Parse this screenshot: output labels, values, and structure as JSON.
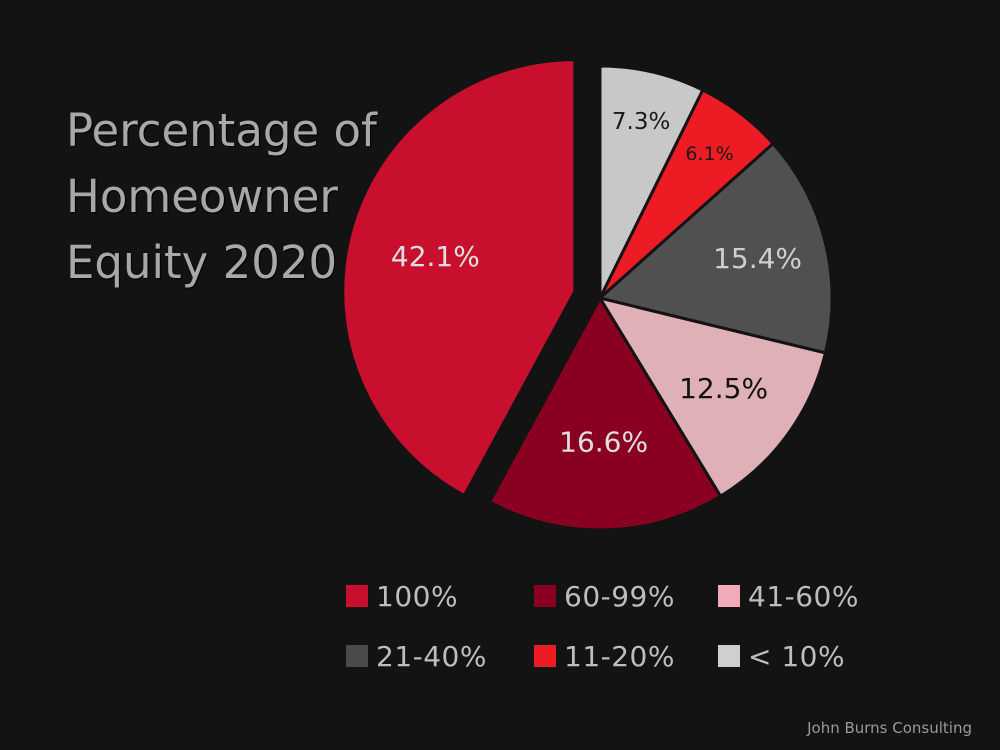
{
  "title_lines": [
    "Percentage of",
    "Homeowner",
    "Equity 2020"
  ],
  "credit": "John Burns Consulting",
  "chart_data": {
    "type": "pie",
    "title": "Percentage of Homeowner Equity 2020",
    "legend_position": "bottom",
    "slices": [
      {
        "label": "100%",
        "value": 42.1,
        "display": "42.1%",
        "color": "#c8102e",
        "label_color": "#e0dede",
        "exploded": true
      },
      {
        "label": "60-99%",
        "value": 16.6,
        "display": "16.6%",
        "color": "#8a0020",
        "label_color": "#e0dede",
        "exploded": false
      },
      {
        "label": "41-60%",
        "value": 12.5,
        "display": "12.5%",
        "color": "#dfb1b7",
        "label_color": "#111111",
        "exploded": false
      },
      {
        "label": "21-40%",
        "value": 15.4,
        "display": "15.4%",
        "color": "#505050",
        "label_color": "#cfcfcf",
        "exploded": false
      },
      {
        "label": "11-20%",
        "value": 6.1,
        "display": "6.1%",
        "color": "#ed1c24",
        "label_color": "#1a1a1a",
        "exploded": false
      },
      {
        "label": "< 10%",
        "value": 7.3,
        "display": "7.3%",
        "color": "#c8c8c8",
        "label_color": "#1a1a1a",
        "exploded": false
      }
    ]
  },
  "legend": [
    {
      "label": "100%",
      "color": "#c8102e"
    },
    {
      "label": "60-99%",
      "color": "#8a0020"
    },
    {
      "label": "41-60%",
      "color": "#f2a9b8"
    },
    {
      "label": "21-40%",
      "color": "#4a4a4a"
    },
    {
      "label": "11-20%",
      "color": "#ed1c24"
    },
    {
      "label": "< 10%",
      "color": "#cfcfcf"
    }
  ]
}
